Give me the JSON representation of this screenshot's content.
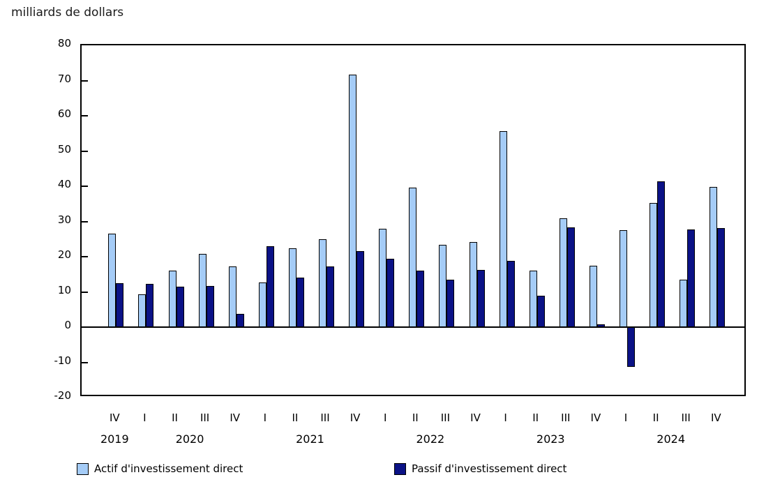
{
  "title": "milliards de dollars",
  "legend": {
    "actif_label": "Actif d'investissement direct",
    "passif_label": "Passif d'investissement direct"
  },
  "colors": {
    "actif": "#A5CCF7",
    "passif": "#0B1286",
    "axis": "#000000"
  },
  "chart_data": {
    "type": "bar",
    "title": "milliards de dollars",
    "ylabel": "milliards de dollars",
    "xlabel": "",
    "ylim": [
      -20,
      80
    ],
    "yticks": [
      80,
      70,
      60,
      50,
      40,
      30,
      20,
      10,
      0,
      -10,
      -20
    ],
    "grid": false,
    "legend_position": "bottom",
    "categories": [
      "IV",
      "I",
      "II",
      "III",
      "IV",
      "I",
      "II",
      "III",
      "IV",
      "I",
      "II",
      "III",
      "IV",
      "I",
      "II",
      "III",
      "IV",
      "I",
      "II",
      "III",
      "IV"
    ],
    "years": [
      {
        "label": "2019",
        "from": 0,
        "to": 0
      },
      {
        "label": "2020",
        "from": 1,
        "to": 4
      },
      {
        "label": "2021",
        "from": 5,
        "to": 8
      },
      {
        "label": "2022",
        "from": 9,
        "to": 12
      },
      {
        "label": "2023",
        "from": 13,
        "to": 16
      },
      {
        "label": "2024",
        "from": 17,
        "to": 20
      }
    ],
    "series": [
      {
        "name": "Actif d'investissement direct",
        "color": "#A5CCF7",
        "values": [
          26.6,
          9.4,
          16.0,
          20.7,
          17.3,
          12.7,
          22.3,
          24.9,
          71.6,
          27.9,
          39.6,
          23.4,
          24.2,
          55.6,
          16.1,
          30.8,
          17.5,
          27.5,
          35.2,
          13.5,
          39.9
        ]
      },
      {
        "name": "Passif d'investissement direct",
        "color": "#0B1286",
        "values": [
          12.5,
          12.2,
          11.5,
          11.6,
          3.8,
          22.9,
          14.0,
          17.2,
          21.5,
          19.4,
          16.0,
          13.5,
          16.3,
          18.8,
          9.0,
          28.4,
          0.8,
          -11.2,
          41.3,
          27.7,
          28.2
        ]
      }
    ]
  }
}
